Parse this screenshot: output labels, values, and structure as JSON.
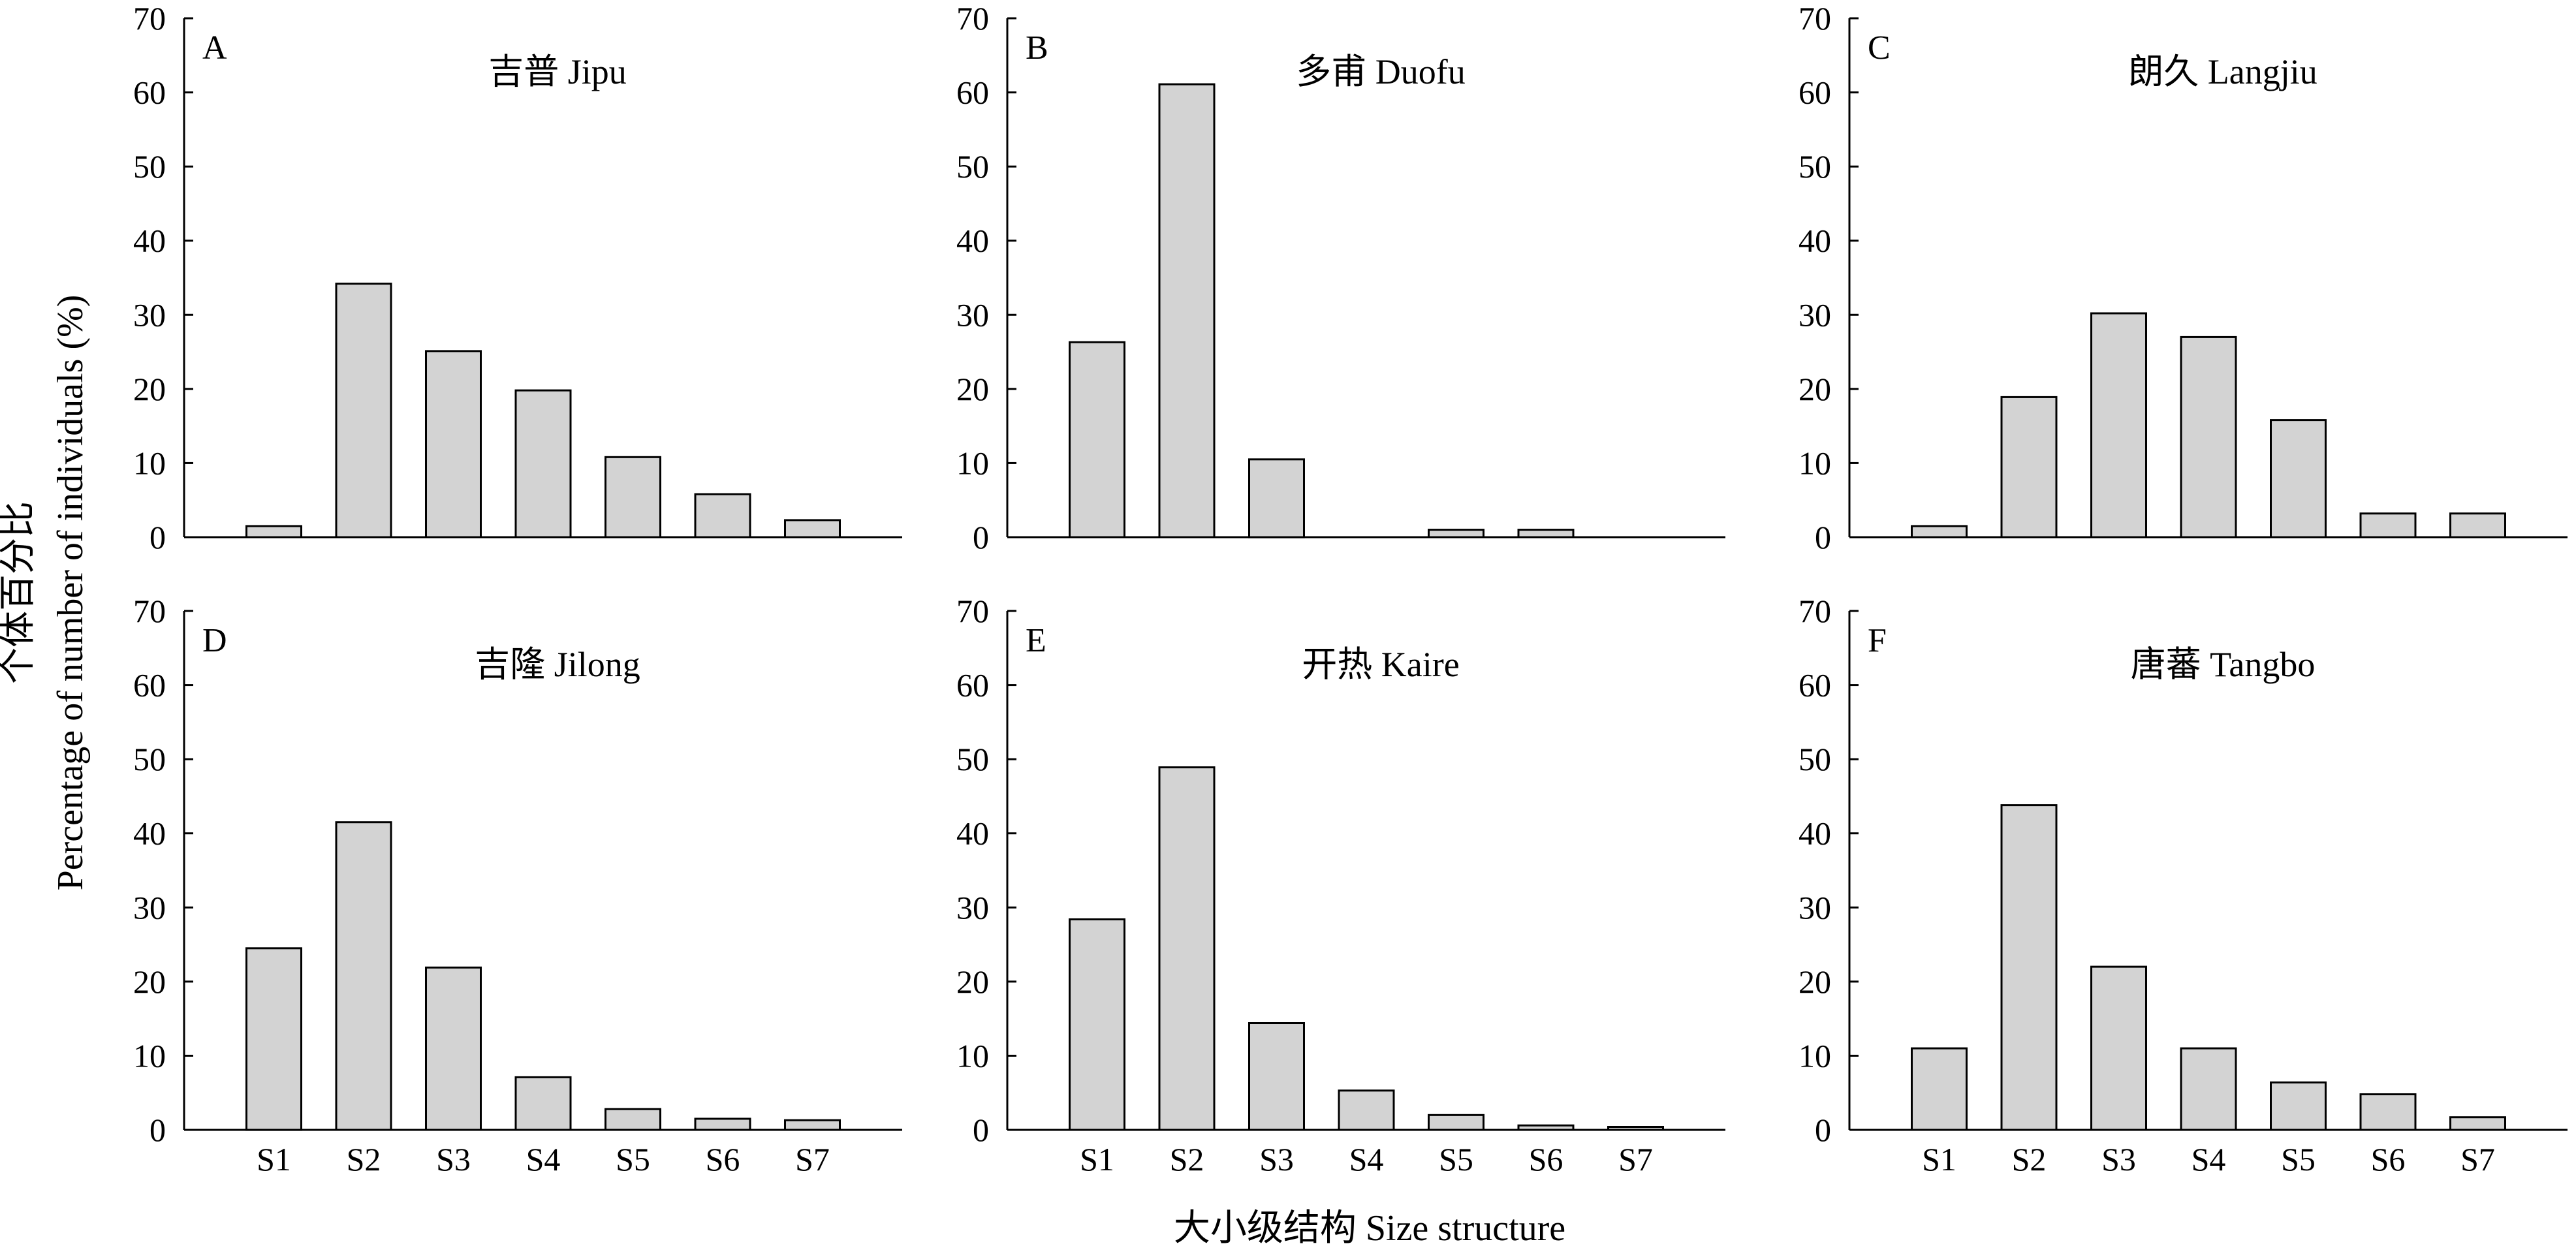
{
  "figure": {
    "ylabel_cn": "个体百分比",
    "ylabel_en": "Percentage of number of individuals (%)",
    "xlabel": "大小级结构 Size structure"
  },
  "chart_data": [
    {
      "type": "bar",
      "panel": "A",
      "title": "吉普 Jipu",
      "categories": [
        "S1",
        "S2",
        "S3",
        "S4",
        "S5",
        "S6",
        "S7"
      ],
      "values": [
        1.5,
        34.2,
        25.1,
        19.8,
        10.8,
        5.8,
        2.3
      ],
      "ylim": [
        0,
        70
      ],
      "yticks": [
        0,
        10,
        20,
        30,
        40,
        50,
        60,
        70
      ],
      "show_xtick_labels": false,
      "bar_color": "#d3d3d3"
    },
    {
      "type": "bar",
      "panel": "B",
      "title": "多甫 Duofu",
      "categories": [
        "S1",
        "S2",
        "S3",
        "S4",
        "S5",
        "S6",
        "S7"
      ],
      "values": [
        26.3,
        61.1,
        10.5,
        0,
        1.0,
        1.0,
        0
      ],
      "ylim": [
        0,
        70
      ],
      "yticks": [
        0,
        10,
        20,
        30,
        40,
        50,
        60,
        70
      ],
      "show_xtick_labels": false,
      "bar_color": "#d3d3d3"
    },
    {
      "type": "bar",
      "panel": "C",
      "title": "朗久 Langjiu",
      "categories": [
        "S1",
        "S2",
        "S3",
        "S4",
        "S5",
        "S6",
        "S7"
      ],
      "values": [
        1.5,
        18.9,
        30.2,
        27.0,
        15.8,
        3.2,
        3.2
      ],
      "ylim": [
        0,
        70
      ],
      "yticks": [
        0,
        10,
        20,
        30,
        40,
        50,
        60,
        70
      ],
      "show_xtick_labels": false,
      "bar_color": "#d3d3d3"
    },
    {
      "type": "bar",
      "panel": "D",
      "title": "吉隆 Jilong",
      "categories": [
        "S1",
        "S2",
        "S3",
        "S4",
        "S5",
        "S6",
        "S7"
      ],
      "values": [
        24.5,
        41.5,
        21.9,
        7.1,
        2.8,
        1.5,
        1.3
      ],
      "ylim": [
        0,
        70
      ],
      "yticks": [
        0,
        10,
        20,
        30,
        40,
        50,
        60,
        70
      ],
      "show_xtick_labels": true,
      "bar_color": "#d3d3d3"
    },
    {
      "type": "bar",
      "panel": "E",
      "title": "开热 Kaire",
      "categories": [
        "S1",
        "S2",
        "S3",
        "S4",
        "S5",
        "S6",
        "S7"
      ],
      "values": [
        28.4,
        48.9,
        14.4,
        5.3,
        2.0,
        0.6,
        0.4
      ],
      "ylim": [
        0,
        70
      ],
      "yticks": [
        0,
        10,
        20,
        30,
        40,
        50,
        60,
        70
      ],
      "show_xtick_labels": true,
      "bar_color": "#d3d3d3"
    },
    {
      "type": "bar",
      "panel": "F",
      "title": "唐蕃 Tangbo",
      "categories": [
        "S1",
        "S2",
        "S3",
        "S4",
        "S5",
        "S6",
        "S7"
      ],
      "values": [
        11.0,
        43.8,
        22.0,
        11.0,
        6.4,
        4.8,
        1.7
      ],
      "ylim": [
        0,
        70
      ],
      "yticks": [
        0,
        10,
        20,
        30,
        40,
        50,
        60,
        70
      ],
      "show_xtick_labels": true,
      "bar_color": "#d3d3d3"
    }
  ]
}
